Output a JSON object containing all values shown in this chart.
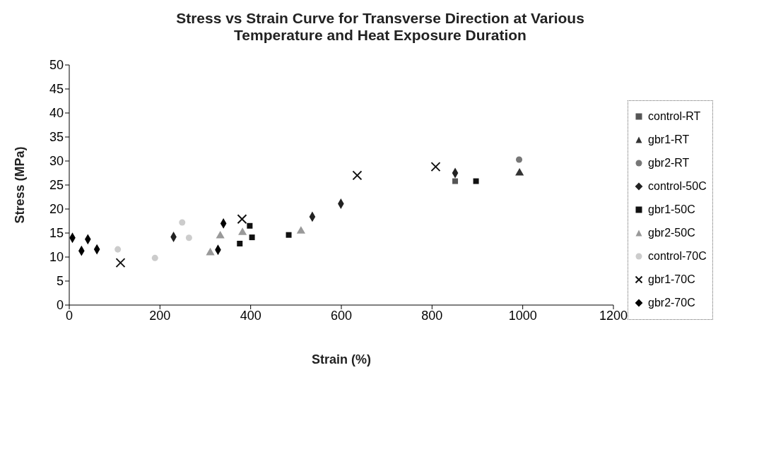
{
  "chart_data": {
    "type": "scatter",
    "title": "Stress vs Strain Curve for Transverse Direction at Various Temperature and Heat Exposure Duration",
    "xlabel": "Strain (%)",
    "ylabel": "Stress (MPa)",
    "xlim": [
      0,
      1200
    ],
    "xticks": [
      0,
      200,
      400,
      600,
      800,
      1000,
      1200
    ],
    "ylim": [
      0,
      50
    ],
    "yticks": [
      0,
      5,
      10,
      15,
      20,
      25,
      30,
      35,
      40,
      45,
      50
    ],
    "grid": false,
    "legend": "right",
    "series": [
      {
        "name": "control-RT",
        "color": "#555555",
        "marker": "square",
        "x": [
          851
        ],
        "values": [
          25.8
        ]
      },
      {
        "name": "gbr1-RT",
        "color": "#333333",
        "marker": "triangle",
        "x": [
          993
        ],
        "values": [
          27.5
        ]
      },
      {
        "name": "gbr2-RT",
        "color": "#777777",
        "marker": "circle",
        "x": [
          992
        ],
        "values": [
          30.3
        ]
      },
      {
        "name": "control-50C",
        "color": "#222222",
        "marker": "diamond",
        "x": [
          230,
          536,
          599,
          851
        ],
        "values": [
          14.2,
          18.4,
          21.1,
          27.5
        ]
      },
      {
        "name": "gbr1-50C",
        "color": "#111111",
        "marker": "square",
        "x": [
          376,
          403,
          398,
          484,
          897
        ],
        "values": [
          12.8,
          14.1,
          16.5,
          14.6,
          25.8
        ]
      },
      {
        "name": "gbr2-50C",
        "color": "#999999",
        "marker": "triangle",
        "x": [
          311,
          333,
          382,
          511
        ],
        "values": [
          10.9,
          14.4,
          15.1,
          15.4
        ]
      },
      {
        "name": "control-70C",
        "color": "#cccccc",
        "marker": "circle",
        "x": [
          107,
          189,
          249,
          264
        ],
        "values": [
          11.6,
          9.8,
          17.2,
          14.0
        ]
      },
      {
        "name": "gbr1-70C",
        "color": "#111111",
        "marker": "cross",
        "x": [
          113,
          381,
          635,
          808
        ],
        "values": [
          8.8,
          17.9,
          27.0,
          28.8
        ]
      },
      {
        "name": "gbr2-70C",
        "color": "#000000",
        "marker": "diamond",
        "x": [
          7,
          41,
          27,
          61,
          340,
          328
        ],
        "values": [
          14.0,
          13.7,
          11.3,
          11.6,
          17.0,
          11.5
        ]
      }
    ]
  }
}
